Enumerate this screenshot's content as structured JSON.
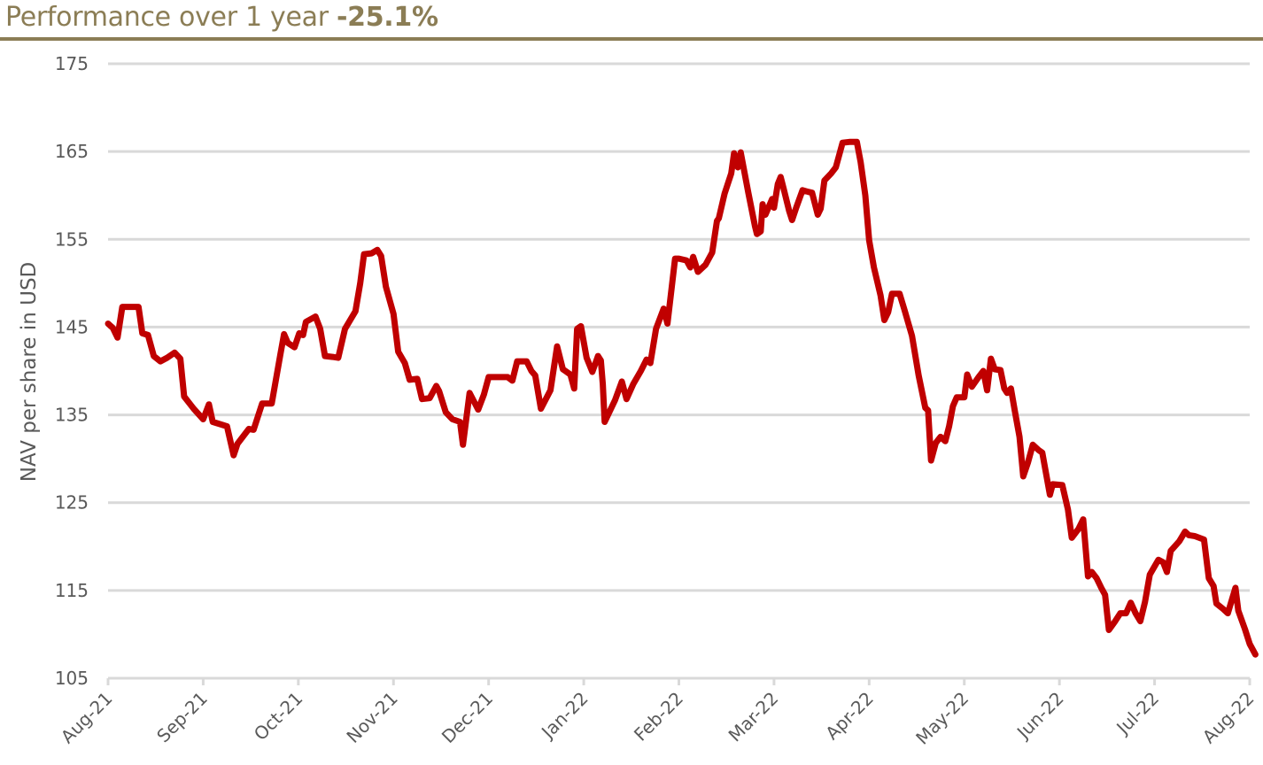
{
  "header": {
    "label": "Performance over 1 year",
    "value": "-25.1%"
  },
  "colors": {
    "accent": "#8b7d55",
    "line": "#c00000",
    "grid": "#d9d9d9",
    "text": "#595959"
  },
  "chart_data": {
    "type": "line",
    "title": "Performance over 1 year -25.1%",
    "xlabel": "",
    "ylabel": "NAV per share in USD",
    "ylim": [
      105,
      175
    ],
    "yticks": [
      105,
      115,
      125,
      135,
      145,
      155,
      165,
      175
    ],
    "xticks": [
      "Aug-21",
      "Sep-21",
      "Oct-21",
      "Nov-21",
      "Dec-21",
      "Jan-22",
      "Feb-22",
      "Mar-22",
      "Apr-22",
      "May-22",
      "Jun-22",
      "Jul-22",
      "Aug-22"
    ],
    "grid": true,
    "legend": "none",
    "series": [
      {
        "points": [
          [
            0.0,
            145.4
          ],
          [
            0.05,
            144.9
          ],
          [
            0.1,
            143.8
          ],
          [
            0.15,
            147.3
          ],
          [
            0.25,
            147.3
          ],
          [
            0.32,
            147.3
          ],
          [
            0.36,
            144.3
          ],
          [
            0.42,
            144.1
          ],
          [
            0.48,
            141.7
          ],
          [
            0.55,
            141.1
          ],
          [
            0.62,
            141.5
          ],
          [
            0.7,
            142.1
          ],
          [
            0.76,
            141.4
          ],
          [
            0.8,
            137.1
          ],
          [
            0.9,
            135.7
          ],
          [
            1.0,
            134.5
          ],
          [
            1.06,
            136.2
          ],
          [
            1.1,
            134.2
          ],
          [
            1.25,
            133.7
          ],
          [
            1.32,
            130.4
          ],
          [
            1.36,
            131.7
          ],
          [
            1.48,
            133.4
          ],
          [
            1.53,
            133.3
          ],
          [
            1.62,
            136.3
          ],
          [
            1.72,
            136.3
          ],
          [
            1.81,
            141.8
          ],
          [
            1.85,
            144.2
          ],
          [
            1.89,
            143.2
          ],
          [
            1.96,
            142.7
          ],
          [
            2.01,
            144.3
          ],
          [
            2.05,
            144.1
          ],
          [
            2.08,
            145.6
          ],
          [
            2.18,
            146.2
          ],
          [
            2.23,
            144.8
          ],
          [
            2.28,
            141.7
          ],
          [
            2.36,
            141.6
          ],
          [
            2.42,
            141.5
          ],
          [
            2.49,
            144.8
          ],
          [
            2.6,
            146.8
          ],
          [
            2.65,
            150.0
          ],
          [
            2.69,
            153.3
          ],
          [
            2.77,
            153.4
          ],
          [
            2.83,
            153.8
          ],
          [
            2.87,
            153.1
          ],
          [
            2.92,
            149.6
          ],
          [
            3.0,
            146.5
          ],
          [
            3.05,
            142.2
          ],
          [
            3.12,
            140.9
          ],
          [
            3.17,
            139.0
          ],
          [
            3.25,
            139.1
          ],
          [
            3.3,
            136.8
          ],
          [
            3.38,
            136.9
          ],
          [
            3.45,
            138.3
          ],
          [
            3.48,
            137.7
          ],
          [
            3.55,
            135.3
          ],
          [
            3.62,
            134.5
          ],
          [
            3.7,
            134.2
          ],
          [
            3.73,
            131.6
          ],
          [
            3.8,
            137.5
          ],
          [
            3.89,
            135.6
          ],
          [
            3.95,
            137.3
          ],
          [
            4.0,
            139.3
          ],
          [
            4.12,
            139.3
          ],
          [
            4.2,
            139.3
          ],
          [
            4.25,
            138.9
          ],
          [
            4.3,
            141.1
          ],
          [
            4.4,
            141.1
          ],
          [
            4.45,
            140.0
          ],
          [
            4.49,
            139.5
          ],
          [
            4.55,
            135.7
          ],
          [
            4.65,
            137.8
          ],
          [
            4.72,
            142.8
          ],
          [
            4.78,
            140.2
          ],
          [
            4.86,
            139.6
          ],
          [
            4.9,
            138.0
          ],
          [
            4.93,
            144.8
          ],
          [
            4.97,
            145.1
          ],
          [
            5.03,
            141.5
          ],
          [
            5.09,
            139.9
          ],
          [
            5.15,
            141.7
          ],
          [
            5.18,
            141.2
          ],
          [
            5.2,
            138.5
          ],
          [
            5.22,
            134.2
          ],
          [
            5.33,
            136.7
          ],
          [
            5.4,
            138.8
          ],
          [
            5.45,
            136.8
          ],
          [
            5.52,
            138.5
          ],
          [
            5.6,
            140.0
          ],
          [
            5.66,
            141.3
          ],
          [
            5.7,
            140.9
          ],
          [
            5.76,
            144.8
          ],
          [
            5.84,
            147.1
          ],
          [
            5.88,
            145.4
          ],
          [
            5.96,
            152.8
          ],
          [
            6.0,
            152.8
          ],
          [
            6.08,
            152.6
          ],
          [
            6.12,
            151.8
          ],
          [
            6.15,
            153.0
          ],
          [
            6.2,
            151.3
          ],
          [
            6.28,
            152.1
          ],
          [
            6.35,
            153.5
          ],
          [
            6.4,
            157.1
          ],
          [
            6.42,
            157.4
          ],
          [
            6.48,
            160.2
          ],
          [
            6.55,
            162.5
          ],
          [
            6.58,
            164.8
          ],
          [
            6.62,
            163.2
          ],
          [
            6.65,
            164.9
          ],
          [
            6.73,
            160.3
          ],
          [
            6.8,
            156.5
          ],
          [
            6.82,
            155.6
          ],
          [
            6.86,
            155.9
          ],
          [
            6.88,
            159.0
          ],
          [
            6.91,
            157.8
          ],
          [
            6.98,
            159.6
          ],
          [
            7.0,
            158.6
          ],
          [
            7.04,
            161.3
          ],
          [
            7.07,
            162.1
          ],
          [
            7.1,
            160.8
          ],
          [
            7.16,
            158.2
          ],
          [
            7.19,
            157.2
          ],
          [
            7.23,
            158.5
          ],
          [
            7.26,
            159.4
          ],
          [
            7.3,
            160.6
          ],
          [
            7.36,
            160.4
          ],
          [
            7.4,
            160.3
          ],
          [
            7.46,
            157.8
          ],
          [
            7.49,
            158.5
          ],
          [
            7.53,
            161.7
          ],
          [
            7.6,
            162.5
          ],
          [
            7.65,
            163.2
          ],
          [
            7.72,
            166.0
          ],
          [
            7.8,
            166.1
          ],
          [
            7.87,
            166.1
          ],
          [
            7.91,
            163.8
          ],
          [
            7.96,
            160.0
          ],
          [
            8.0,
            154.9
          ],
          [
            8.05,
            151.8
          ],
          [
            8.12,
            148.6
          ],
          [
            8.16,
            145.8
          ],
          [
            8.2,
            146.7
          ],
          [
            8.24,
            148.8
          ],
          [
            8.32,
            148.8
          ],
          [
            8.37,
            147.0
          ],
          [
            8.45,
            144.0
          ],
          [
            8.52,
            139.5
          ],
          [
            8.59,
            135.8
          ],
          [
            8.62,
            135.5
          ],
          [
            8.65,
            129.8
          ],
          [
            8.7,
            131.8
          ],
          [
            8.75,
            132.5
          ],
          [
            8.8,
            132.0
          ],
          [
            8.84,
            133.7
          ],
          [
            8.88,
            136.0
          ],
          [
            8.92,
            137.0
          ],
          [
            9.0,
            137.0
          ],
          [
            9.03,
            139.6
          ],
          [
            9.08,
            138.2
          ],
          [
            9.15,
            139.3
          ],
          [
            9.2,
            140.0
          ],
          [
            9.24,
            137.8
          ],
          [
            9.28,
            141.4
          ],
          [
            9.32,
            140.2
          ],
          [
            9.38,
            140.1
          ],
          [
            9.42,
            138.0
          ],
          [
            9.45,
            137.5
          ],
          [
            9.49,
            138.0
          ],
          [
            9.53,
            135.5
          ],
          [
            9.58,
            132.5
          ],
          [
            9.62,
            128.0
          ],
          [
            9.67,
            129.6
          ],
          [
            9.72,
            131.6
          ],
          [
            9.78,
            131.0
          ],
          [
            9.82,
            130.7
          ],
          [
            9.9,
            125.9
          ],
          [
            9.93,
            127.1
          ],
          [
            10.03,
            127.0
          ],
          [
            10.09,
            124.2
          ],
          [
            10.13,
            121.0
          ],
          [
            10.2,
            122.0
          ],
          [
            10.25,
            123.1
          ],
          [
            10.3,
            116.6
          ],
          [
            10.34,
            117.1
          ],
          [
            10.39,
            116.4
          ],
          [
            10.44,
            115.3
          ],
          [
            10.48,
            114.5
          ],
          [
            10.52,
            110.5
          ],
          [
            10.58,
            111.4
          ],
          [
            10.64,
            112.4
          ],
          [
            10.7,
            112.4
          ],
          [
            10.75,
            113.6
          ],
          [
            10.8,
            112.4
          ],
          [
            10.85,
            111.5
          ],
          [
            10.9,
            113.7
          ],
          [
            10.95,
            116.8
          ],
          [
            11.04,
            118.5
          ],
          [
            11.09,
            118.2
          ],
          [
            11.13,
            117.1
          ],
          [
            11.17,
            119.5
          ],
          [
            11.26,
            120.6
          ],
          [
            11.32,
            121.7
          ],
          [
            11.36,
            121.3
          ],
          [
            11.42,
            121.2
          ],
          [
            11.52,
            120.8
          ],
          [
            11.57,
            116.4
          ],
          [
            11.62,
            115.5
          ],
          [
            11.65,
            113.5
          ],
          [
            11.72,
            112.9
          ],
          [
            11.77,
            112.4
          ],
          [
            11.85,
            115.3
          ],
          [
            11.88,
            112.7
          ],
          [
            11.95,
            110.6
          ],
          [
            12.0,
            108.9
          ],
          [
            12.06,
            107.7
          ]
        ]
      }
    ]
  }
}
